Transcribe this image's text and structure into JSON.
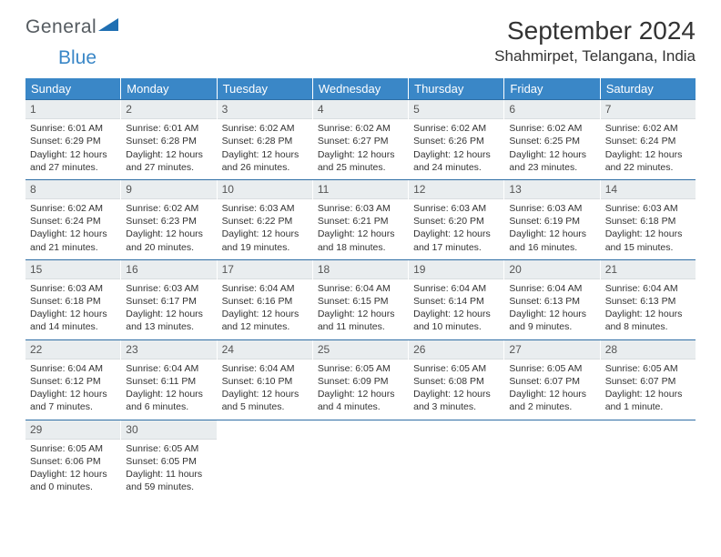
{
  "logo": {
    "text1": "General",
    "text2": "Blue",
    "shape_color": "#1f6fb2"
  },
  "header": {
    "month_title": "September 2024",
    "location": "Shahmirpet, Telangana, India"
  },
  "colors": {
    "header_bg": "#3a87c7",
    "header_text": "#ffffff",
    "week_border": "#2e6ea5",
    "daynum_bg": "#e9edef",
    "body_text": "#333333"
  },
  "day_names": [
    "Sunday",
    "Monday",
    "Tuesday",
    "Wednesday",
    "Thursday",
    "Friday",
    "Saturday"
  ],
  "weeks": [
    [
      {
        "n": "1",
        "sr": "Sunrise: 6:01 AM",
        "ss": "Sunset: 6:29 PM",
        "d1": "Daylight: 12 hours",
        "d2": "and 27 minutes."
      },
      {
        "n": "2",
        "sr": "Sunrise: 6:01 AM",
        "ss": "Sunset: 6:28 PM",
        "d1": "Daylight: 12 hours",
        "d2": "and 27 minutes."
      },
      {
        "n": "3",
        "sr": "Sunrise: 6:02 AM",
        "ss": "Sunset: 6:28 PM",
        "d1": "Daylight: 12 hours",
        "d2": "and 26 minutes."
      },
      {
        "n": "4",
        "sr": "Sunrise: 6:02 AM",
        "ss": "Sunset: 6:27 PM",
        "d1": "Daylight: 12 hours",
        "d2": "and 25 minutes."
      },
      {
        "n": "5",
        "sr": "Sunrise: 6:02 AM",
        "ss": "Sunset: 6:26 PM",
        "d1": "Daylight: 12 hours",
        "d2": "and 24 minutes."
      },
      {
        "n": "6",
        "sr": "Sunrise: 6:02 AM",
        "ss": "Sunset: 6:25 PM",
        "d1": "Daylight: 12 hours",
        "d2": "and 23 minutes."
      },
      {
        "n": "7",
        "sr": "Sunrise: 6:02 AM",
        "ss": "Sunset: 6:24 PM",
        "d1": "Daylight: 12 hours",
        "d2": "and 22 minutes."
      }
    ],
    [
      {
        "n": "8",
        "sr": "Sunrise: 6:02 AM",
        "ss": "Sunset: 6:24 PM",
        "d1": "Daylight: 12 hours",
        "d2": "and 21 minutes."
      },
      {
        "n": "9",
        "sr": "Sunrise: 6:02 AM",
        "ss": "Sunset: 6:23 PM",
        "d1": "Daylight: 12 hours",
        "d2": "and 20 minutes."
      },
      {
        "n": "10",
        "sr": "Sunrise: 6:03 AM",
        "ss": "Sunset: 6:22 PM",
        "d1": "Daylight: 12 hours",
        "d2": "and 19 minutes."
      },
      {
        "n": "11",
        "sr": "Sunrise: 6:03 AM",
        "ss": "Sunset: 6:21 PM",
        "d1": "Daylight: 12 hours",
        "d2": "and 18 minutes."
      },
      {
        "n": "12",
        "sr": "Sunrise: 6:03 AM",
        "ss": "Sunset: 6:20 PM",
        "d1": "Daylight: 12 hours",
        "d2": "and 17 minutes."
      },
      {
        "n": "13",
        "sr": "Sunrise: 6:03 AM",
        "ss": "Sunset: 6:19 PM",
        "d1": "Daylight: 12 hours",
        "d2": "and 16 minutes."
      },
      {
        "n": "14",
        "sr": "Sunrise: 6:03 AM",
        "ss": "Sunset: 6:18 PM",
        "d1": "Daylight: 12 hours",
        "d2": "and 15 minutes."
      }
    ],
    [
      {
        "n": "15",
        "sr": "Sunrise: 6:03 AM",
        "ss": "Sunset: 6:18 PM",
        "d1": "Daylight: 12 hours",
        "d2": "and 14 minutes."
      },
      {
        "n": "16",
        "sr": "Sunrise: 6:03 AM",
        "ss": "Sunset: 6:17 PM",
        "d1": "Daylight: 12 hours",
        "d2": "and 13 minutes."
      },
      {
        "n": "17",
        "sr": "Sunrise: 6:04 AM",
        "ss": "Sunset: 6:16 PM",
        "d1": "Daylight: 12 hours",
        "d2": "and 12 minutes."
      },
      {
        "n": "18",
        "sr": "Sunrise: 6:04 AM",
        "ss": "Sunset: 6:15 PM",
        "d1": "Daylight: 12 hours",
        "d2": "and 11 minutes."
      },
      {
        "n": "19",
        "sr": "Sunrise: 6:04 AM",
        "ss": "Sunset: 6:14 PM",
        "d1": "Daylight: 12 hours",
        "d2": "and 10 minutes."
      },
      {
        "n": "20",
        "sr": "Sunrise: 6:04 AM",
        "ss": "Sunset: 6:13 PM",
        "d1": "Daylight: 12 hours",
        "d2": "and 9 minutes."
      },
      {
        "n": "21",
        "sr": "Sunrise: 6:04 AM",
        "ss": "Sunset: 6:13 PM",
        "d1": "Daylight: 12 hours",
        "d2": "and 8 minutes."
      }
    ],
    [
      {
        "n": "22",
        "sr": "Sunrise: 6:04 AM",
        "ss": "Sunset: 6:12 PM",
        "d1": "Daylight: 12 hours",
        "d2": "and 7 minutes."
      },
      {
        "n": "23",
        "sr": "Sunrise: 6:04 AM",
        "ss": "Sunset: 6:11 PM",
        "d1": "Daylight: 12 hours",
        "d2": "and 6 minutes."
      },
      {
        "n": "24",
        "sr": "Sunrise: 6:04 AM",
        "ss": "Sunset: 6:10 PM",
        "d1": "Daylight: 12 hours",
        "d2": "and 5 minutes."
      },
      {
        "n": "25",
        "sr": "Sunrise: 6:05 AM",
        "ss": "Sunset: 6:09 PM",
        "d1": "Daylight: 12 hours",
        "d2": "and 4 minutes."
      },
      {
        "n": "26",
        "sr": "Sunrise: 6:05 AM",
        "ss": "Sunset: 6:08 PM",
        "d1": "Daylight: 12 hours",
        "d2": "and 3 minutes."
      },
      {
        "n": "27",
        "sr": "Sunrise: 6:05 AM",
        "ss": "Sunset: 6:07 PM",
        "d1": "Daylight: 12 hours",
        "d2": "and 2 minutes."
      },
      {
        "n": "28",
        "sr": "Sunrise: 6:05 AM",
        "ss": "Sunset: 6:07 PM",
        "d1": "Daylight: 12 hours",
        "d2": "and 1 minute."
      }
    ],
    [
      {
        "n": "29",
        "sr": "Sunrise: 6:05 AM",
        "ss": "Sunset: 6:06 PM",
        "d1": "Daylight: 12 hours",
        "d2": "and 0 minutes."
      },
      {
        "n": "30",
        "sr": "Sunrise: 6:05 AM",
        "ss": "Sunset: 6:05 PM",
        "d1": "Daylight: 11 hours",
        "d2": "and 59 minutes."
      },
      {
        "empty": true
      },
      {
        "empty": true
      },
      {
        "empty": true
      },
      {
        "empty": true
      },
      {
        "empty": true
      }
    ]
  ]
}
